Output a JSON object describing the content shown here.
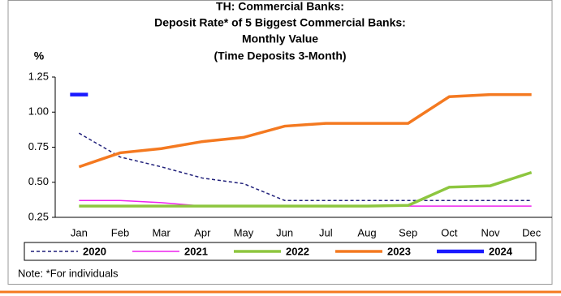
{
  "chart_data": {
    "type": "line",
    "title": [
      "TH: Commercial Banks:",
      "Deposit Rate* of 5 Biggest Commercial Banks:",
      "Monthly Value",
      "(Time Deposits 3-Month)"
    ],
    "y_axis_label": "%",
    "note": "Note: *For individuals",
    "categories": [
      "Jan",
      "Feb",
      "Mar",
      "Apr",
      "May",
      "Jun",
      "Jul",
      "Aug",
      "Sep",
      "Oct",
      "Nov",
      "Dec"
    ],
    "series": [
      {
        "name": "2020",
        "color": "#1f1f7a",
        "values": [
          0.85,
          0.68,
          0.61,
          0.53,
          0.49,
          0.37,
          0.37,
          0.37,
          0.37,
          0.37,
          0.37,
          0.37
        ]
      },
      {
        "name": "2021",
        "color": "#ee22ee",
        "values": [
          0.37,
          0.37,
          0.355,
          0.33,
          0.33,
          0.33,
          0.33,
          0.33,
          0.33,
          0.33,
          0.33,
          0.33
        ]
      },
      {
        "name": "2022",
        "color": "#8dc63f",
        "values": [
          0.33,
          0.33,
          0.33,
          0.33,
          0.33,
          0.33,
          0.33,
          0.33,
          0.335,
          0.465,
          0.475,
          0.57
        ]
      },
      {
        "name": "2023",
        "color": "#f47920",
        "values": [
          0.61,
          0.71,
          0.74,
          0.79,
          0.82,
          0.9,
          0.92,
          0.92,
          0.92,
          1.11,
          1.125,
          1.125
        ]
      },
      {
        "name": "2024",
        "color": "#1a1aff",
        "values": [
          1.125,
          null,
          null,
          null,
          null,
          null,
          null,
          null,
          null,
          null,
          null,
          null
        ]
      }
    ],
    "ylim": [
      0.25,
      1.25
    ],
    "yticks": [
      0.25,
      {
        "value": 0.5,
        "label": "0.50"
      },
      0.75,
      {
        "value": 1.0,
        "label": "1.00"
      },
      1.25
    ],
    "grid": false
  }
}
